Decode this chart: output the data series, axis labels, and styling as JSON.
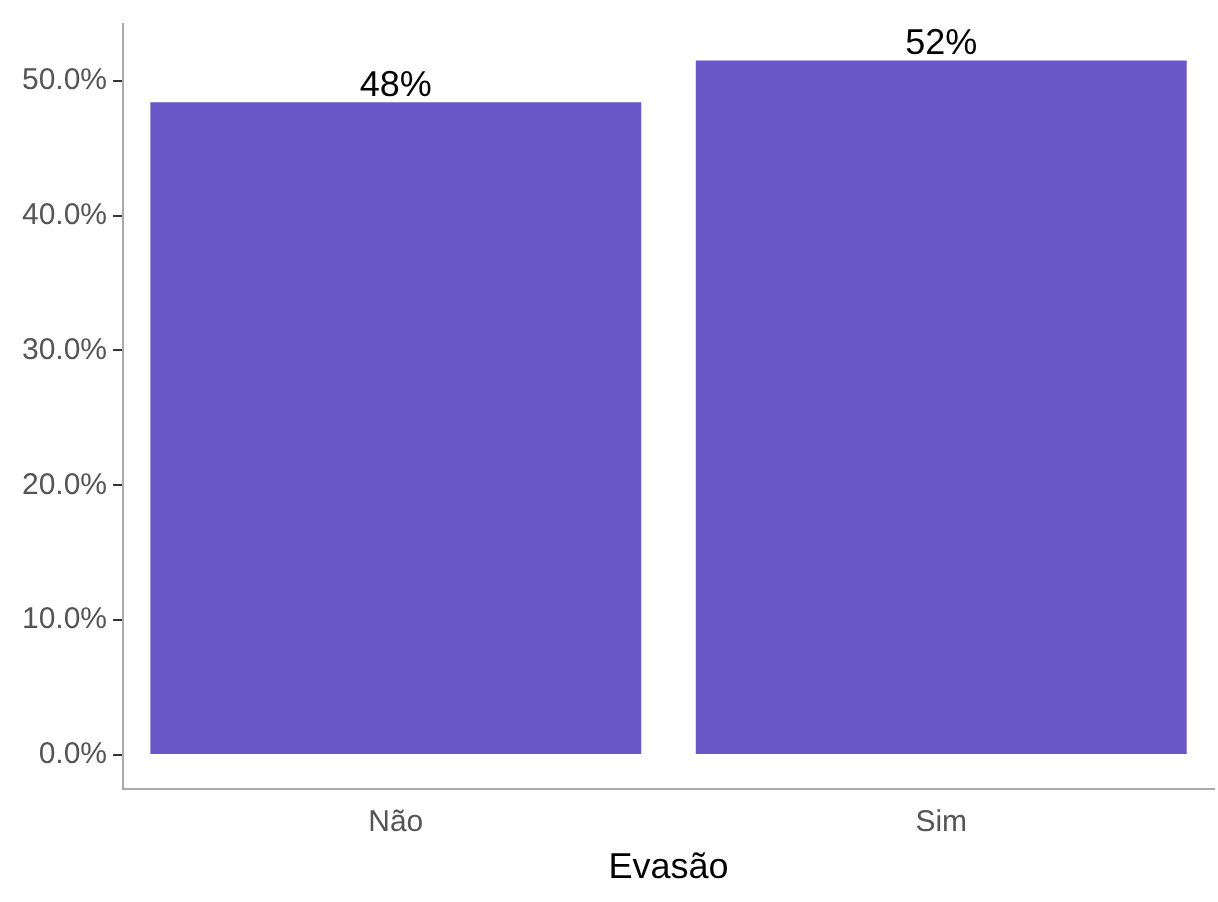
{
  "chart_data": {
    "type": "bar",
    "xlabel": "Evasão",
    "categories": [
      "Não",
      "Sim"
    ],
    "values": [
      48.4,
      51.5
    ],
    "value_labels": [
      "48%",
      "52%"
    ],
    "color": "#6a58c8",
    "ylim": [
      -2.5,
      54.2
    ],
    "yticks": [
      {
        "value": 0,
        "label": "0.0%"
      },
      {
        "value": 10,
        "label": "10.0%"
      },
      {
        "value": 20,
        "label": "20.0%"
      },
      {
        "value": 30,
        "label": "30.0%"
      },
      {
        "value": 40,
        "label": "40.0%"
      },
      {
        "value": 50,
        "label": "50.0%"
      }
    ],
    "grid": false,
    "legend": false
  }
}
